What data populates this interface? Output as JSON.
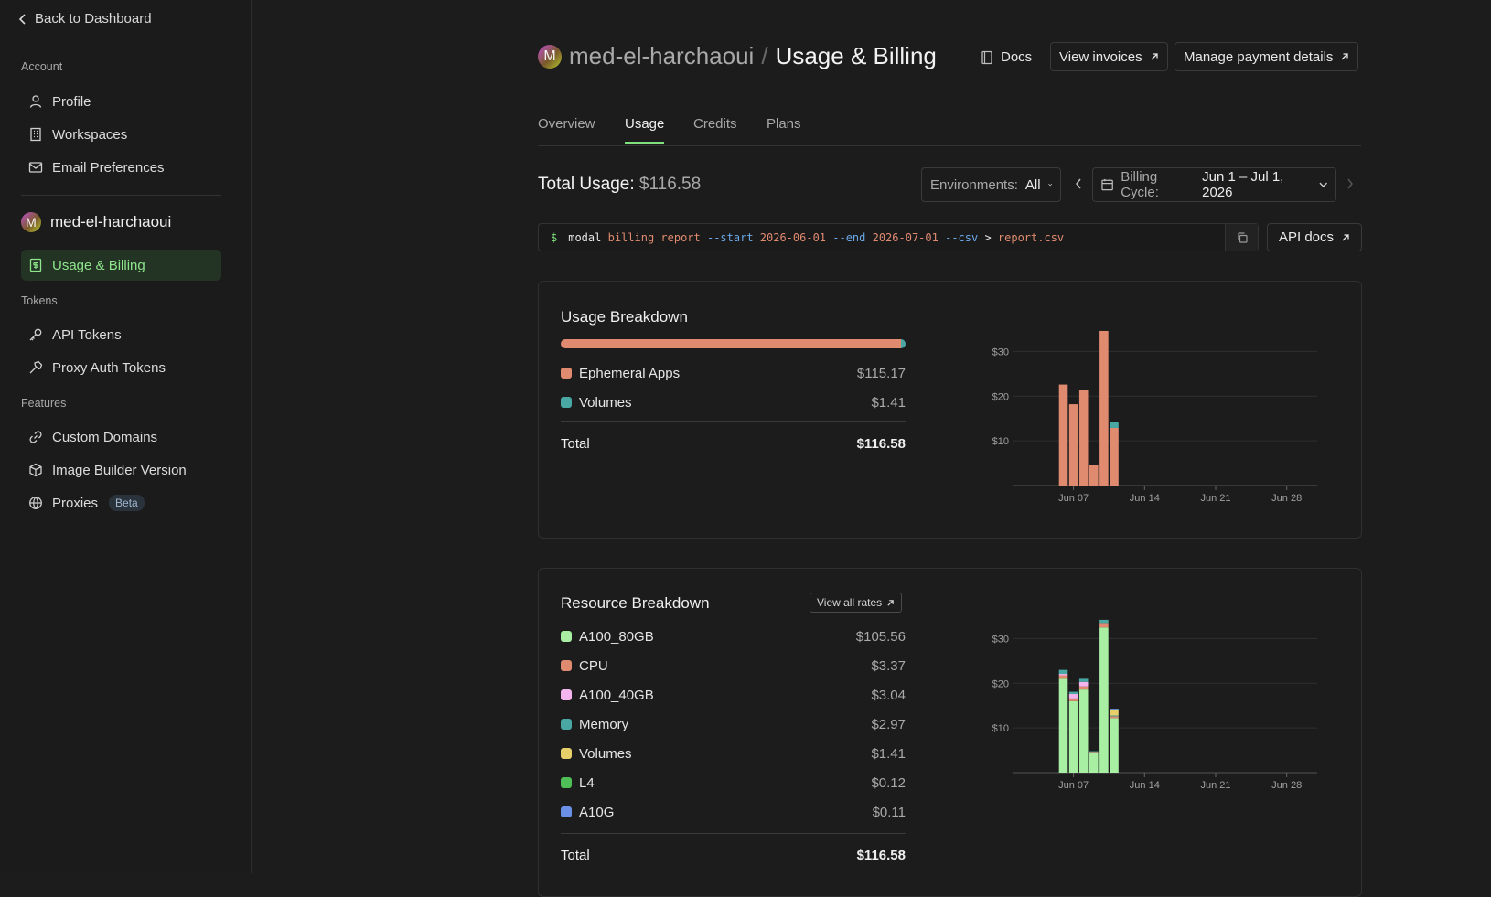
{
  "sidebar": {
    "back_label": "Back to Dashboard",
    "account_heading": "Account",
    "account_items": [
      {
        "label": "Profile",
        "icon": "user-icon"
      },
      {
        "label": "Workspaces",
        "icon": "building-icon"
      },
      {
        "label": "Email Preferences",
        "icon": "mail-icon"
      }
    ],
    "workspace": {
      "avatar_letter": "M",
      "name": "med-el-harchaoui"
    },
    "active_item": {
      "label": "Usage & Billing",
      "icon": "receipt-icon"
    },
    "tokens_heading": "Tokens",
    "token_items": [
      {
        "label": "API Tokens",
        "icon": "key-icon"
      },
      {
        "label": "Proxy Auth Tokens",
        "icon": "hammer-icon"
      }
    ],
    "features_heading": "Features",
    "feature_items": [
      {
        "label": "Custom Domains",
        "icon": "link-icon"
      },
      {
        "label": "Image Builder Version",
        "icon": "package-icon"
      },
      {
        "label": "Proxies",
        "icon": "globe-icon",
        "badge": "Beta"
      }
    ]
  },
  "header": {
    "avatar_letter": "M",
    "workspace": "med-el-harchaoui",
    "separator": "/",
    "page": "Usage & Billing",
    "docs": "Docs",
    "view_invoices": "View invoices",
    "manage_payment": "Manage payment details"
  },
  "tabs": [
    "Overview",
    "Usage",
    "Credits",
    "Plans"
  ],
  "active_tab": "Usage",
  "total": {
    "label": "Total Usage:",
    "amount": "$116.58"
  },
  "environments": {
    "label": "Environments:",
    "value": "All"
  },
  "billing_cycle": {
    "label": "Billing Cycle:",
    "value": "Jun 1 – Jul 1, 2026"
  },
  "command": {
    "prompt": "$",
    "tokens": [
      {
        "t": "modal",
        "c": "#e6e6e6"
      },
      {
        "t": "billing",
        "c": "#e08a70"
      },
      {
        "t": "report",
        "c": "#e08a70"
      },
      {
        "t": "--start",
        "c": "#6aa8e8"
      },
      {
        "t": "2026-06-01",
        "c": "#e08a70"
      },
      {
        "t": "--end",
        "c": "#6aa8e8"
      },
      {
        "t": "2026-07-01",
        "c": "#e08a70"
      },
      {
        "t": "--csv",
        "c": "#6aa8e8"
      },
      {
        "t": ">",
        "c": "#e6e6e6"
      },
      {
        "t": "report.csv",
        "c": "#e08a70"
      }
    ]
  },
  "api_docs": "API docs",
  "usage_breakdown": {
    "title": "Usage Breakdown",
    "items": [
      {
        "name": "Ephemeral Apps",
        "value": "$115.17",
        "amount": 115.17,
        "color": "#e08a70"
      },
      {
        "name": "Volumes",
        "value": "$1.41",
        "amount": 1.41,
        "color": "#4aa8a4"
      }
    ],
    "total_label": "Total",
    "total_value": "$116.58"
  },
  "resource_breakdown": {
    "title": "Resource Breakdown",
    "view_rates": "View all rates",
    "items": [
      {
        "name": "A100_80GB",
        "value": "$105.56",
        "color": "#a8efa4"
      },
      {
        "name": "CPU",
        "value": "$3.37",
        "color": "#e08a70"
      },
      {
        "name": "A100_40GB",
        "value": "$3.04",
        "color": "#f4b4ee"
      },
      {
        "name": "Memory",
        "value": "$2.97",
        "color": "#4aa8a4"
      },
      {
        "name": "Volumes",
        "value": "$1.41",
        "color": "#e8cf6a"
      },
      {
        "name": "L4",
        "value": "$0.12",
        "color": "#4fbf58"
      },
      {
        "name": "A10G",
        "value": "$0.11",
        "color": "#6a90e8"
      }
    ],
    "total_label": "Total",
    "total_value": "$116.58"
  },
  "chart_data": [
    {
      "type": "bar",
      "stacked": true,
      "x_tick_labels": [
        "Jun 07",
        "Jun 14",
        "Jun 21",
        "Jun 28"
      ],
      "x_tick_days": [
        7,
        14,
        21,
        28
      ],
      "x_range_days": [
        1,
        31
      ],
      "y_ticks": [
        10,
        20,
        30
      ],
      "y_tick_labels": [
        "$10",
        "$20",
        "$30"
      ],
      "ylim": [
        0,
        35
      ],
      "days": [
        6,
        7,
        8,
        9,
        10,
        11
      ],
      "series": [
        {
          "name": "Ephemeral Apps",
          "color": "#e08a70",
          "values": [
            22.6,
            18.2,
            21.3,
            4.6,
            34.6,
            12.9
          ]
        },
        {
          "name": "Volumes",
          "color": "#4aa8a4",
          "values": [
            0,
            0,
            0,
            0,
            0,
            1.4
          ]
        }
      ]
    },
    {
      "type": "bar",
      "stacked": true,
      "x_tick_labels": [
        "Jun 07",
        "Jun 14",
        "Jun 21",
        "Jun 28"
      ],
      "x_tick_days": [
        7,
        14,
        21,
        28
      ],
      "x_range_days": [
        1,
        31
      ],
      "y_ticks": [
        10,
        20,
        30
      ],
      "y_tick_labels": [
        "$10",
        "$20",
        "$30"
      ],
      "ylim": [
        0,
        35
      ],
      "days": [
        6,
        7,
        8,
        9,
        10,
        11
      ],
      "series": [
        {
          "name": "A100_80GB",
          "color": "#a8efa4",
          "values": [
            21.0,
            16.0,
            18.6,
            4.5,
            32.5,
            12.2
          ]
        },
        {
          "name": "CPU",
          "color": "#e08a70",
          "values": [
            0.8,
            0.6,
            0.7,
            0.2,
            1.0,
            0.4
          ]
        },
        {
          "name": "A100_40GB",
          "color": "#f4b4ee",
          "values": [
            0.3,
            1.0,
            1.0,
            0,
            0,
            0
          ]
        },
        {
          "name": "Memory",
          "color": "#4aa8a4",
          "values": [
            0.9,
            0.5,
            0.7,
            0.1,
            0.7,
            0.2
          ]
        },
        {
          "name": "Volumes",
          "color": "#e8cf6a",
          "values": [
            0,
            0,
            0,
            0,
            0,
            1.4
          ]
        },
        {
          "name": "L4",
          "color": "#4fbf58",
          "values": [
            0,
            0,
            0,
            0,
            0,
            0.05
          ]
        },
        {
          "name": "A10G",
          "color": "#6a90e8",
          "values": [
            0,
            0,
            0,
            0,
            0,
            0.05
          ]
        }
      ]
    }
  ]
}
